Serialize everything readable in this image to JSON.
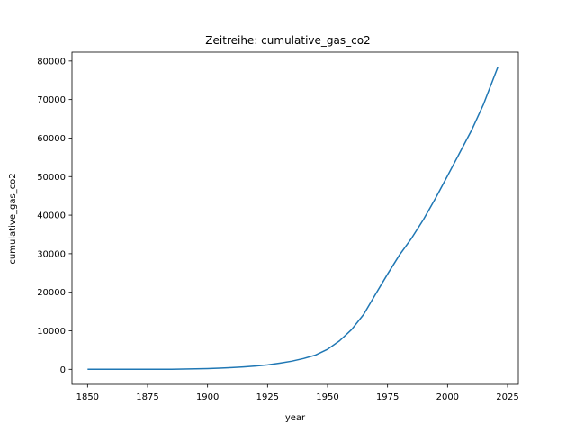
{
  "chart_data": {
    "type": "line",
    "title": "Zeitreihe: cumulative_gas_co2",
    "xlabel": "year",
    "ylabel": "cumulative_gas_co2",
    "xlim": [
      1843.5,
      2029.5
    ],
    "ylim": [
      -3900,
      82300
    ],
    "xticks": [
      1850,
      1875,
      1900,
      1925,
      1950,
      1975,
      2000,
      2025
    ],
    "yticks": [
      0,
      10000,
      20000,
      30000,
      40000,
      50000,
      60000,
      70000,
      80000
    ],
    "grid": false,
    "color": "#1f77b4",
    "series": [
      {
        "x": [
          1850,
          1860,
          1870,
          1880,
          1885,
          1890,
          1895,
          1900,
          1905,
          1910,
          1915,
          1920,
          1925,
          1930,
          1935,
          1940,
          1945,
          1950,
          1955,
          1960,
          1965,
          1970,
          1975,
          1980,
          1985,
          1990,
          1995,
          2000,
          2005,
          2010,
          2015,
          2021
        ],
        "y": [
          0,
          0,
          0,
          10,
          20,
          60,
          120,
          200,
          300,
          450,
          620,
          850,
          1150,
          1600,
          2100,
          2800,
          3700,
          5200,
          7400,
          10300,
          14200,
          19500,
          24700,
          29700,
          34000,
          38900,
          44400,
          50200,
          56100,
          62000,
          68800,
          78500
        ]
      }
    ]
  }
}
